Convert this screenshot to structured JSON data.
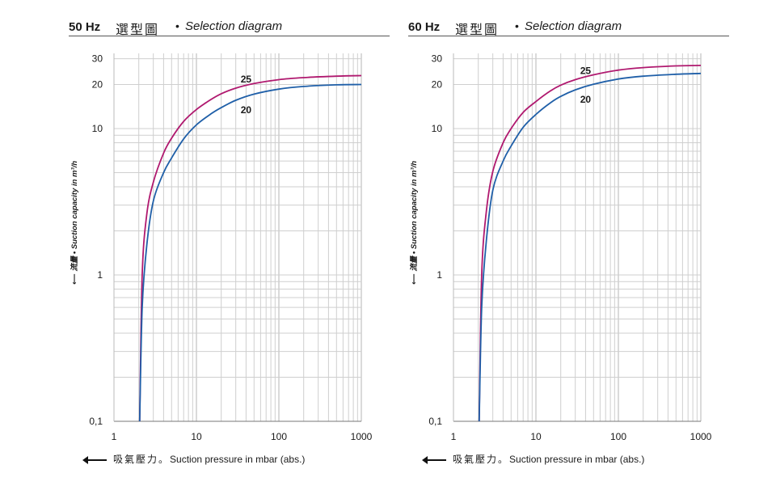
{
  "chart_data": [
    {
      "type": "line",
      "title_freq": "50 Hz",
      "title_cn": "選型圖",
      "title_en": "Selection diagram",
      "ylabel": "流量 • Suction capacity in m³/h",
      "xlabel_cn": "吸氣壓力。",
      "xlabel_en": "Suction pressure in mbar (abs.)",
      "xscale": "log",
      "yscale": "log",
      "xlim": [
        1,
        1000
      ],
      "ylim": [
        0.1,
        30
      ],
      "xticks": [
        "1",
        "10",
        "100",
        "1000"
      ],
      "yticks": [
        "0,1",
        "1",
        "10",
        "20",
        "30"
      ],
      "grid": true,
      "series": [
        {
          "name": "25",
          "color": "#b0196f",
          "x": [
            2.05,
            2.2,
            2.5,
            3,
            4,
            5,
            7,
            10,
            15,
            20,
            30,
            50,
            100,
            200,
            500,
            1000
          ],
          "y": [
            0.1,
            1.0,
            2.6,
            4.3,
            6.8,
            8.6,
            11.2,
            13.5,
            15.8,
            17.3,
            18.9,
            20.3,
            21.6,
            22.3,
            22.8,
            23.0
          ]
        },
        {
          "name": "20",
          "color": "#1f5fa8",
          "x": [
            2.05,
            2.2,
            2.5,
            3,
            4,
            5,
            7,
            10,
            15,
            20,
            30,
            50,
            100,
            200,
            500,
            1000
          ],
          "y": [
            0.1,
            0.6,
            1.6,
            3.2,
            5.0,
            6.3,
            8.5,
            10.6,
            12.6,
            13.9,
            15.6,
            17.2,
            18.6,
            19.4,
            19.9,
            20.0
          ]
        }
      ]
    },
    {
      "type": "line",
      "title_freq": "60 Hz",
      "title_cn": "選型圖",
      "title_en": "Selection diagram",
      "ylabel": "流量 • Suction capacity in m³/h",
      "xlabel_cn": "吸氣壓力。",
      "xlabel_en": "Suction pressure in mbar (abs.)",
      "xscale": "log",
      "yscale": "log",
      "xlim": [
        1,
        1000
      ],
      "ylim": [
        0.1,
        30
      ],
      "xticks": [
        "1",
        "10",
        "100",
        "1000"
      ],
      "yticks": [
        "0,1",
        "1",
        "10",
        "20",
        "30"
      ],
      "grid": true,
      "series": [
        {
          "name": "25",
          "color": "#b0196f",
          "x": [
            2.05,
            2.2,
            2.5,
            3,
            4,
            5,
            7,
            10,
            15,
            20,
            30,
            50,
            100,
            200,
            500,
            1000
          ],
          "y": [
            0.1,
            1.0,
            2.7,
            5.1,
            8.0,
            10.0,
            12.9,
            15.3,
            18.1,
            19.8,
            21.6,
            23.3,
            25.1,
            26.1,
            26.8,
            27.0
          ]
        },
        {
          "name": "20",
          "color": "#1f5fa8",
          "x": [
            2.05,
            2.2,
            2.5,
            3,
            4,
            5,
            7,
            10,
            15,
            20,
            30,
            50,
            100,
            200,
            500,
            1000
          ],
          "y": [
            0.1,
            0.6,
            1.7,
            3.8,
            6.0,
            7.6,
            10.2,
            12.5,
            15.0,
            16.6,
            18.4,
            20.1,
            21.8,
            22.8,
            23.5,
            23.8
          ]
        }
      ]
    }
  ]
}
